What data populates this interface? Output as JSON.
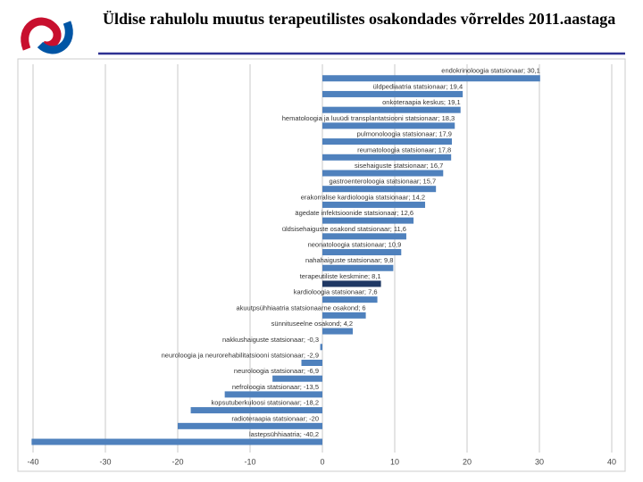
{
  "chart_data": {
    "type": "barh",
    "title": "Üldise rahulolu muutus terapeutilistes osakondades võrreldes 2011.aastaga",
    "categories": [
      "endokrinoloogia statsionaar;",
      "üldpediaatria statsionaar;",
      "onkoteraapia keskus;",
      "hematoloogia ja luuüdi transplantatsiooni statsionaar;",
      "pulmonoloogia statsionaar;",
      "reumatoloogia statsionaar;",
      "sisehaiguste statsionaar;",
      "gastroenteroloogia statsionaar;",
      "erakorralise kardioloogia statsionaar;",
      "ägedate infektsioonide statsionaar;",
      "üldsisehaiguste osakond statsionaar;",
      "neonatoloogia statsionaar;",
      "nahahaiguste statsionaar;",
      "terapeutiliste keskmine;",
      "kardioloogia statsionaar;",
      "akuutpsühhiaatria statsionaarne osakond;",
      "sünnituseelne osakond;",
      "nakkushaiguste statsionaar;",
      "neuroloogia ja neurorehabilitatsiooni statsionaar;",
      "neuroloogia statsionaar;",
      "nefroloogia statsionaar;",
      "kopsutuberkuloosi statsionaar;",
      "radioteraapia statsionaar;",
      "lastepsühhiaatria;"
    ],
    "values": [
      30.1,
      19.4,
      19.1,
      18.3,
      17.9,
      17.8,
      16.7,
      15.7,
      14.2,
      12.6,
      11.6,
      10.9,
      9.8,
      8.1,
      7.6,
      6,
      4.2,
      -0.3,
      -2.9,
      -6.9,
      -13.5,
      -18.2,
      -20,
      -40.2
    ],
    "value_labels": [
      "30,1",
      "19,4",
      "19,1",
      "18,3",
      "17,9",
      "17,8",
      "16,7",
      "15,7",
      "14,2",
      "12,6",
      "11,6",
      "10,9",
      "9,8",
      "8,1",
      "7,6",
      "6",
      "4,2",
      "-0,3",
      "-2,9",
      "-6,9",
      "-13,5",
      "-18,2",
      "-20",
      "-40,2"
    ],
    "colors": [
      "#4f81bd",
      "#4f81bd",
      "#4f81bd",
      "#4f81bd",
      "#4f81bd",
      "#4f81bd",
      "#4f81bd",
      "#4f81bd",
      "#4f81bd",
      "#4f81bd",
      "#4f81bd",
      "#4f81bd",
      "#4f81bd",
      "#1f3864",
      "#4f81bd",
      "#4f81bd",
      "#4f81bd",
      "#4f81bd",
      "#4f81bd",
      "#4f81bd",
      "#4f81bd",
      "#4f81bd",
      "#4f81bd",
      "#4f81bd"
    ],
    "xlim": [
      -40,
      40
    ],
    "xticks": [
      -40,
      -30,
      -20,
      -10,
      0,
      10,
      20,
      30,
      40
    ],
    "grid": true
  }
}
